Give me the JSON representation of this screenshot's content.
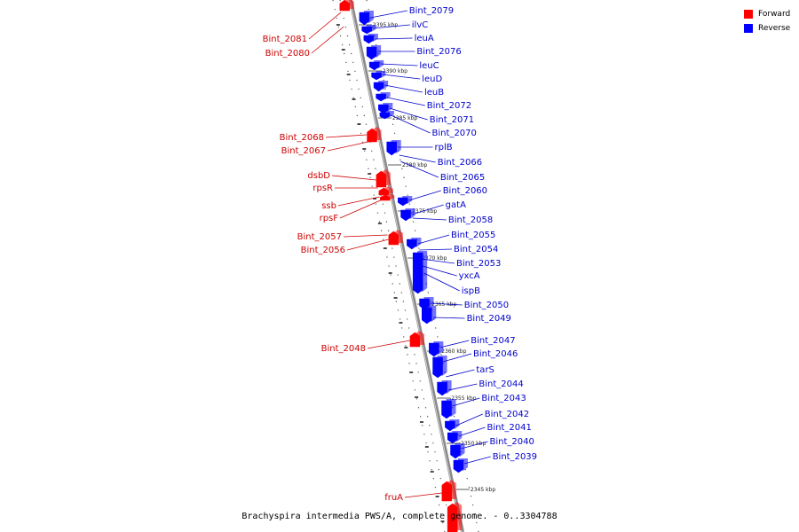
{
  "caption": "Brachyspira intermedia PWS/A, complete genome. - 0..3304788",
  "legend": [
    {
      "label": "Forward",
      "color": "#ff0000"
    },
    {
      "label": "Reverse",
      "color": "#0000ff"
    }
  ],
  "colors": {
    "forward": "#ff0000",
    "reverse": "#0000ff",
    "forward_text": "#cc0000",
    "reverse_text": "#0000cc"
  },
  "ticks": [
    "2395 kbp",
    "2390 kbp",
    "2385 kbp",
    "2380 kbp",
    "2375 kbp",
    "2370 kbp",
    "2365 kbp",
    "2360 kbp",
    "2355 kbp",
    "2350 kbp",
    "2345 kbp"
  ],
  "reverse_genes": [
    "Bint_2079",
    "ilvC",
    "leuA",
    "Bint_2076",
    "leuC",
    "leuD",
    "leuB",
    "Bint_2072",
    "Bint_2071",
    "Bint_2070",
    "rplB",
    "Bint_2066",
    "Bint_2065",
    "Bint_2060",
    "gatA",
    "Bint_2058",
    "Bint_2055",
    "Bint_2054",
    "Bint_2053",
    "yxcA",
    "ispB",
    "Bint_2050",
    "Bint_2049",
    "Bint_2047",
    "Bint_2046",
    "tarS",
    "Bint_2044",
    "Bint_2043",
    "Bint_2042",
    "Bint_2041",
    "Bint_2040",
    "Bint_2039"
  ],
  "forward_genes": [
    "Bint_2081",
    "Bint_2080",
    "Bint_2068",
    "Bint_2067",
    "dsbD",
    "rpsR",
    "ssb",
    "rpsF",
    "Bint_2057",
    "Bint_2056",
    "Bint_2048",
    "fruA"
  ]
}
